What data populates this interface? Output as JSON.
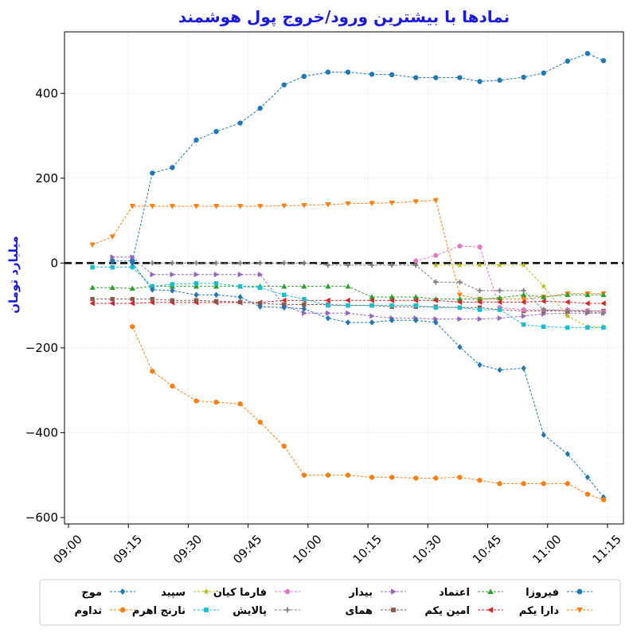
{
  "chart_data": {
    "type": "line",
    "title": "نمادها با بیشترین ورود/خروج پول هوشمند",
    "ylabel": "میلیارد تومان",
    "xlabel": "",
    "ylim": [
      -615,
      545
    ],
    "xlim": [
      "08:59",
      "11:19"
    ],
    "yticks": [
      -600,
      -400,
      -200,
      0,
      200,
      400
    ],
    "ytick_labels": [
      "−600",
      "−400",
      "−200",
      "0",
      "200",
      "400"
    ],
    "xticks": [
      "09:00",
      "09:15",
      "09:30",
      "09:45",
      "10:00",
      "10:15",
      "10:30",
      "10:45",
      "11:00",
      "11:15"
    ],
    "zero_line": true,
    "legend_position": "bottom",
    "x": [
      "09:06",
      "09:11",
      "09:16",
      "09:21",
      "09:26",
      "09:32",
      "09:37",
      "09:43",
      "09:48",
      "09:54",
      "09:59",
      "10:05",
      "10:10",
      "10:16",
      "10:21",
      "10:27",
      "10:32",
      "10:38",
      "10:43",
      "10:48",
      "10:54",
      "10:59",
      "11:05",
      "11:10",
      "11:14"
    ],
    "series": [
      {
        "name": "فیروزا",
        "color": "#1f77b4",
        "marker": "circle",
        "values": [
          null,
          5,
          5,
          212,
          225,
          290,
          310,
          330,
          365,
          420,
          440,
          450,
          450,
          445,
          444,
          437,
          437,
          437,
          428,
          431,
          438,
          448,
          476,
          494,
          477
        ]
      },
      {
        "name": "دارا یکم",
        "color": "#ff7f0e",
        "marker": "triangle-down",
        "values": [
          43,
          62,
          134,
          134,
          134,
          134,
          134,
          134,
          134,
          135,
          136,
          138,
          140,
          141,
          142,
          145,
          148,
          -75,
          -85,
          -85,
          -85,
          -80,
          -72,
          -72,
          -72
        ]
      },
      {
        "name": "اعتماد",
        "color": "#2ca02c",
        "marker": "triangle-up",
        "values": [
          -58,
          -58,
          -60,
          -55,
          -55,
          -55,
          -55,
          -55,
          -55,
          -55,
          -55,
          -55,
          -55,
          -80,
          -80,
          -80,
          -85,
          -85,
          -85,
          -82,
          -75,
          -80,
          -75,
          -75,
          -75
        ]
      },
      {
        "name": "امین یکم",
        "color": "#d62728",
        "marker": "triangle-left",
        "values": [
          -95,
          -95,
          -95,
          -93,
          -93,
          -93,
          -93,
          -93,
          -93,
          -88,
          -88,
          -88,
          -88,
          -88,
          -88,
          -88,
          -88,
          -92,
          -92,
          -92,
          -92,
          -90,
          -92,
          -95,
          -95
        ]
      },
      {
        "name": "بیدار",
        "color": "#9467bd",
        "marker": "triangle-right",
        "values": [
          null,
          14,
          14,
          -27,
          -27,
          -27,
          -27,
          -27,
          -27,
          -100,
          -118,
          -118,
          -118,
          -125,
          -130,
          -130,
          -132,
          -132,
          -132,
          -130,
          -125,
          -120,
          -118,
          -118,
          -118
        ]
      },
      {
        "name": "همای",
        "color": "#8c564b",
        "marker": "square",
        "values": [
          -85,
          -85,
          -85,
          -85,
          -88,
          -88,
          -90,
          -92,
          -95,
          -98,
          -98,
          -98,
          -100,
          -100,
          -103,
          -103,
          -103,
          -105,
          -105,
          -110,
          -113,
          -113,
          -113,
          -113,
          -113
        ]
      },
      {
        "name": "فارما کیان",
        "color": "#e377c2",
        "marker": "pentagon",
        "values": [
          null,
          null,
          null,
          null,
          null,
          null,
          null,
          null,
          null,
          null,
          null,
          null,
          null,
          null,
          null,
          5,
          18,
          40,
          38,
          -105,
          -110,
          -110,
          -110,
          -112,
          -115
        ]
      },
      {
        "name": "پالایش",
        "color": "#7f7f7f",
        "marker": "plus",
        "values": [
          null,
          null,
          null,
          0,
          0,
          0,
          0,
          0,
          0,
          0,
          0,
          -5,
          -5,
          -5,
          -5,
          -5,
          -45,
          -45,
          -65,
          -65,
          -65,
          -110,
          -113,
          -115,
          -118
        ]
      },
      {
        "name": "سپید",
        "color": "#bcbd22",
        "marker": "star",
        "values": [
          null,
          null,
          null,
          null,
          null,
          null,
          null,
          null,
          null,
          null,
          null,
          null,
          null,
          null,
          null,
          null,
          -5,
          -5,
          -5,
          -5,
          -5,
          -55,
          -125,
          -150,
          -150
        ]
      },
      {
        "name": "نارنج اهرم",
        "color": "#17becf",
        "marker": "x",
        "values": [
          -10,
          -10,
          -10,
          -55,
          -50,
          -48,
          -48,
          -55,
          -58,
          -75,
          -85,
          -100,
          -100,
          -100,
          -100,
          -100,
          -105,
          -105,
          -110,
          -110,
          -145,
          -150,
          -152,
          -152,
          -152
        ]
      },
      {
        "name": "موج",
        "color": "#1f77b4",
        "marker": "diamond",
        "values": [
          null,
          null,
          0,
          -63,
          -65,
          -75,
          -75,
          -80,
          -103,
          -105,
          -108,
          -130,
          -140,
          -140,
          -135,
          -135,
          -140,
          -198,
          -240,
          -252,
          -248,
          -405,
          -450,
          -505,
          -552
        ]
      },
      {
        "name": "تداوم",
        "color": "#ff7f0e",
        "marker": "hexagon",
        "values": [
          null,
          null,
          -150,
          -255,
          -290,
          -325,
          -328,
          -332,
          -375,
          -432,
          -500,
          -500,
          -500,
          -505,
          -505,
          -507,
          -507,
          -505,
          -512,
          -520,
          -520,
          -520,
          -520,
          -545,
          -558
        ]
      }
    ]
  }
}
